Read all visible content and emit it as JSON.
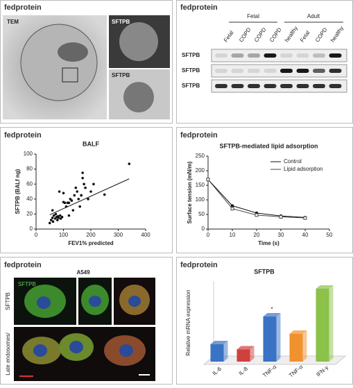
{
  "panels": {
    "tem": {
      "logo": "fedprotein",
      "labels": [
        "TEM",
        "SFTPB",
        "SFTPB"
      ]
    },
    "blot": {
      "logo": "fedprotein",
      "groups": [
        "Fetal",
        "Adult"
      ],
      "lanes": [
        "Fetal",
        "COPD",
        "COPD",
        "COPD",
        "healthy",
        "Fetal",
        "COPD",
        "healthy"
      ],
      "rows": [
        "SFTPB",
        "SFTPB",
        "SFTPB"
      ]
    },
    "if": {
      "logo": "fedprotein",
      "title": "A549",
      "stain": "SFTPB",
      "rows": [
        "SFTPB",
        "Late endosomes/"
      ]
    }
  },
  "chart_data": [
    {
      "type": "scatter",
      "logo": "fedprotein",
      "title": "BALF",
      "x_label": "FEV1% predicted",
      "y_label": "SFTPB (BALf ng)",
      "x": [
        50,
        55,
        60,
        62,
        65,
        70,
        72,
        75,
        78,
        80,
        82,
        85,
        88,
        90,
        95,
        100,
        100,
        105,
        110,
        115,
        120,
        120,
        125,
        130,
        135,
        140,
        145,
        150,
        155,
        160,
        165,
        170,
        175,
        180,
        190,
        200,
        210,
        250,
        340,
        170,
        165,
        60
      ],
      "y": [
        8,
        12,
        15,
        10,
        18,
        14,
        20,
        16,
        12,
        17,
        15,
        50,
        18,
        14,
        16,
        48,
        36,
        35,
        30,
        35,
        18,
        35,
        40,
        38,
        25,
        45,
        55,
        50,
        40,
        30,
        45,
        75,
        60,
        55,
        40,
        50,
        60,
        46,
        87,
        68,
        45,
        25
      ],
      "trend_line": {
        "x": [
          50,
          340
        ],
        "y": [
          19,
          67
        ]
      },
      "color": "#111111",
      "xlim": [
        0,
        400
      ],
      "xticks": [
        0,
        100,
        200,
        300,
        400
      ],
      "ylim": [
        0,
        100
      ],
      "yticks": [
        0,
        20,
        40,
        60,
        80,
        100
      ]
    },
    {
      "type": "line",
      "logo": "fedprotein",
      "title": "SFTPB-mediated lipid adsorption",
      "x_label": "Time (s)",
      "y_label": "Surface tension (mN/m)",
      "x": [
        0,
        10,
        20,
        30,
        40
      ],
      "series": [
        {
          "name": "Control",
          "color": "#111111",
          "values": [
            170,
            80,
            55,
            45,
            40
          ]
        },
        {
          "name": "Lipid adsorption",
          "color": "#444444",
          "values": [
            170,
            70,
            48,
            42,
            38
          ]
        }
      ],
      "xlim": [
        0,
        50
      ],
      "xticks": [
        0,
        10,
        20,
        30,
        40,
        50
      ],
      "ylim": [
        0,
        250
      ],
      "yticks": [
        0,
        50,
        100,
        150,
        200,
        250
      ],
      "legend": "upper-right"
    },
    {
      "type": "bar3d",
      "logo": "fedprotein",
      "title": "SFTPB",
      "y_label": "Relative mRNA expression",
      "annotation": "*",
      "categories": [
        "IL-6",
        "IL-8",
        "TNF-α",
        "TNF-α",
        "IFN-γ"
      ],
      "values": [
        0.5,
        0.35,
        1.3,
        0.8,
        2.1
      ],
      "colors": [
        "#3a73c4",
        "#d0403c",
        "#3a73c4",
        "#f0922e",
        "#8cc14a"
      ]
    }
  ]
}
